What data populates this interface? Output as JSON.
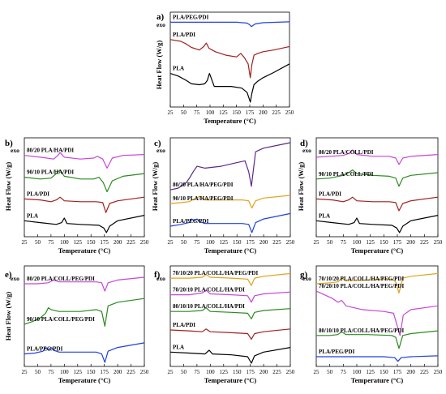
{
  "colors": {
    "black": "#000000",
    "red": "#a0201c",
    "green": "#2b8a1e",
    "magenta": "#c845d8",
    "blue": "#1f3fe0",
    "orange": "#e0a31a",
    "purple": "#5b2a86"
  },
  "chart_data": [
    {
      "type": "line",
      "panel_label": "a)",
      "exo_label": "exo",
      "xlabel": "Temperature (°C)",
      "ylabel": "Heat Flow (W/g)",
      "xlim": [
        25,
        250
      ],
      "xticks": [
        25,
        50,
        75,
        100,
        125,
        150,
        175,
        200,
        225,
        250
      ],
      "series": [
        {
          "name": "PLA/PEG/PDI",
          "color": "#1f3fe0",
          "x": [
            25,
            60,
            100,
            150,
            170,
            175,
            178,
            185,
            200,
            250
          ],
          "y": [
            0.94,
            0.94,
            0.94,
            0.94,
            0.93,
            0.91,
            0.89,
            0.92,
            0.935,
            0.945
          ]
        },
        {
          "name": "PLA/PDI",
          "color": "#a0201c",
          "x": [
            25,
            45,
            55,
            65,
            80,
            88,
            93,
            98,
            110,
            130,
            150,
            158,
            165,
            172,
            176,
            179,
            183,
            190,
            200,
            220,
            250
          ],
          "y": [
            0.74,
            0.72,
            0.69,
            0.65,
            0.62,
            0.66,
            0.7,
            0.64,
            0.6,
            0.56,
            0.54,
            0.58,
            0.53,
            0.46,
            0.3,
            0.45,
            0.56,
            0.58,
            0.6,
            0.62,
            0.66
          ]
        },
        {
          "name": "PLA",
          "color": "#000000",
          "x": [
            25,
            40,
            55,
            65,
            80,
            90,
            95,
            99,
            102,
            108,
            120,
            140,
            160,
            170,
            176,
            179,
            183,
            190,
            200,
            220,
            250
          ],
          "y": [
            0.35,
            0.32,
            0.27,
            0.23,
            0.22,
            0.23,
            0.27,
            0.35,
            0.3,
            0.2,
            0.2,
            0.2,
            0.18,
            0.13,
            0.02,
            0.12,
            0.22,
            0.26,
            0.3,
            0.36,
            0.46
          ]
        }
      ]
    },
    {
      "type": "line",
      "panel_label": "b)",
      "exo_label": "exo",
      "xlabel": "Temperature (°C)",
      "ylabel": "Heat Flow (W/g)",
      "xlim": [
        25,
        250
      ],
      "xticks": [
        25,
        50,
        75,
        100,
        125,
        150,
        175,
        200,
        225,
        250
      ],
      "series": [
        {
          "name": "80/20 PLA/HA/PDI",
          "color": "#c845d8",
          "x": [
            25,
            55,
            80,
            88,
            92,
            100,
            130,
            155,
            162,
            172,
            180,
            190,
            210,
            250
          ],
          "y": [
            0.86,
            0.84,
            0.82,
            0.86,
            0.89,
            0.84,
            0.82,
            0.83,
            0.85,
            0.82,
            0.72,
            0.83,
            0.86,
            0.87
          ]
        },
        {
          "name": "90/10 PLA/HA/PDI",
          "color": "#2b8a1e",
          "x": [
            25,
            55,
            75,
            85,
            92,
            100,
            130,
            155,
            165,
            173,
            180,
            190,
            210,
            250
          ],
          "y": [
            0.62,
            0.6,
            0.61,
            0.66,
            0.7,
            0.63,
            0.6,
            0.6,
            0.62,
            0.56,
            0.46,
            0.58,
            0.63,
            0.66
          ]
        },
        {
          "name": "PLA/PDI",
          "color": "#a0201c",
          "x": [
            25,
            55,
            75,
            85,
            92,
            100,
            130,
            160,
            172,
            178,
            185,
            200,
            250
          ],
          "y": [
            0.38,
            0.37,
            0.35,
            0.37,
            0.4,
            0.36,
            0.35,
            0.35,
            0.34,
            0.23,
            0.33,
            0.36,
            0.4
          ]
        },
        {
          "name": "PLA",
          "color": "#000000",
          "x": [
            25,
            55,
            85,
            95,
            100,
            105,
            130,
            165,
            174,
            179,
            185,
            200,
            250
          ],
          "y": [
            0.14,
            0.12,
            0.1,
            0.12,
            0.17,
            0.11,
            0.1,
            0.09,
            0.06,
            0.01,
            0.08,
            0.14,
            0.2
          ]
        }
      ]
    },
    {
      "type": "line",
      "panel_label": "c)",
      "exo_label": "exo",
      "xlabel": "Temperature (°C)",
      "ylabel": "Heat Flow (W/g)",
      "xlim": [
        25,
        250
      ],
      "xticks": [
        25,
        50,
        75,
        100,
        125,
        150,
        175,
        200,
        225,
        250
      ],
      "series": [
        {
          "name": "80/20 PLA/HA/PEG/PDI",
          "color": "#5b2a86",
          "x": [
            25,
            40,
            55,
            62,
            68,
            75,
            90,
            120,
            150,
            165,
            172,
            177,
            185,
            200,
            225,
            250
          ],
          "y": [
            0.48,
            0.5,
            0.56,
            0.62,
            0.68,
            0.74,
            0.72,
            0.74,
            0.78,
            0.8,
            0.68,
            0.52,
            0.9,
            0.94,
            0.97,
            1.0
          ]
        },
        {
          "name": "90/10 PLA/HA/PEG/PDI",
          "color": "#e0a31a",
          "x": [
            25,
            45,
            60,
            70,
            80,
            90,
            120,
            160,
            172,
            178,
            185,
            200,
            250
          ],
          "y": [
            0.33,
            0.34,
            0.35,
            0.38,
            0.41,
            0.37,
            0.37,
            0.37,
            0.36,
            0.28,
            0.36,
            0.39,
            0.42
          ]
        },
        {
          "name": "PLA/PEG/PDI",
          "color": "#1f3fe0",
          "x": [
            25,
            45,
            60,
            65,
            70,
            75,
            80,
            90,
            120,
            160,
            172,
            178,
            185,
            200,
            250
          ],
          "y": [
            0.08,
            0.1,
            0.12,
            0.16,
            0.14,
            0.16,
            0.13,
            0.11,
            0.11,
            0.11,
            0.1,
            0.01,
            0.12,
            0.16,
            0.22
          ]
        }
      ]
    },
    {
      "type": "line",
      "panel_label": "d)",
      "exo_label": "exo",
      "xlabel": "Temperature (°C)",
      "ylabel": "Heat Flow (W/g)",
      "xlim": [
        25,
        250
      ],
      "xticks": [
        25,
        50,
        75,
        100,
        125,
        150,
        175,
        200,
        225,
        250
      ],
      "series": [
        {
          "name": "80/20 PLA/COLL/PDI",
          "color": "#c845d8",
          "x": [
            25,
            50,
            75,
            85,
            92,
            100,
            130,
            160,
            172,
            178,
            185,
            200,
            250
          ],
          "y": [
            0.84,
            0.85,
            0.86,
            0.88,
            0.92,
            0.87,
            0.85,
            0.85,
            0.83,
            0.76,
            0.83,
            0.85,
            0.87
          ]
        },
        {
          "name": "90/10 PLA/COLL/PDI",
          "color": "#2b8a1e",
          "x": [
            25,
            50,
            75,
            85,
            92,
            100,
            130,
            160,
            172,
            178,
            185,
            200,
            250
          ],
          "y": [
            0.6,
            0.61,
            0.64,
            0.67,
            0.7,
            0.66,
            0.64,
            0.63,
            0.61,
            0.52,
            0.61,
            0.64,
            0.67
          ]
        },
        {
          "name": "PLA/PDI",
          "color": "#a0201c",
          "x": [
            25,
            55,
            75,
            85,
            92,
            100,
            130,
            160,
            172,
            178,
            185,
            200,
            250
          ],
          "y": [
            0.38,
            0.37,
            0.35,
            0.37,
            0.4,
            0.36,
            0.35,
            0.35,
            0.34,
            0.25,
            0.33,
            0.36,
            0.4
          ]
        },
        {
          "name": "PLA",
          "color": "#000000",
          "x": [
            25,
            55,
            85,
            95,
            100,
            105,
            130,
            165,
            174,
            179,
            185,
            200,
            250
          ],
          "y": [
            0.14,
            0.12,
            0.1,
            0.12,
            0.17,
            0.11,
            0.1,
            0.09,
            0.06,
            0.01,
            0.08,
            0.14,
            0.2
          ]
        }
      ]
    },
    {
      "type": "line",
      "panel_label": "e)",
      "exo_label": "exo",
      "xlabel": "Temperature (°C)",
      "ylabel": "Heat Flow (W/g)",
      "xlim": [
        25,
        250
      ],
      "xticks": [
        25,
        50,
        75,
        100,
        125,
        150,
        175,
        200,
        225,
        250
      ],
      "series": [
        {
          "name": "80/20 PLA/COLL/PEG/PDI",
          "color": "#c845d8",
          "x": [
            25,
            50,
            70,
            80,
            90,
            120,
            160,
            170,
            176,
            182,
            200,
            250
          ],
          "y": [
            0.86,
            0.86,
            0.87,
            0.9,
            0.88,
            0.88,
            0.88,
            0.87,
            0.78,
            0.87,
            0.9,
            0.93
          ]
        },
        {
          "name": "90/10 PLA/COLL/PEG/PDI",
          "color": "#2b8a1e",
          "x": [
            25,
            40,
            55,
            65,
            70,
            75,
            90,
            130,
            160,
            170,
            176,
            182,
            200,
            250
          ],
          "y": [
            0.42,
            0.45,
            0.49,
            0.54,
            0.6,
            0.58,
            0.56,
            0.56,
            0.58,
            0.56,
            0.4,
            0.62,
            0.66,
            0.7
          ]
        },
        {
          "name": "PLA/PEG/PDI",
          "color": "#1f3fe0",
          "x": [
            25,
            45,
            60,
            65,
            70,
            75,
            80,
            90,
            120,
            160,
            170,
            176,
            182,
            200,
            250
          ],
          "y": [
            0.1,
            0.11,
            0.13,
            0.17,
            0.14,
            0.17,
            0.14,
            0.12,
            0.12,
            0.12,
            0.1,
            0.01,
            0.13,
            0.17,
            0.22
          ]
        }
      ]
    },
    {
      "type": "line",
      "panel_label": "f)",
      "exo_label": "exo",
      "xlabel": "Temperature (°C)",
      "ylabel": "",
      "xlim": [
        25,
        250
      ],
      "xticks": [
        25,
        50,
        75,
        100,
        125,
        150,
        175,
        200,
        225,
        250
      ],
      "series": [
        {
          "name": "70/10/20 PLA/COLL/HA/PEG/PDI",
          "color": "#e0a31a",
          "x": [
            25,
            60,
            85,
            92,
            100,
            140,
            170,
            177,
            183,
            200,
            250
          ],
          "y": [
            0.92,
            0.92,
            0.93,
            0.96,
            0.93,
            0.92,
            0.91,
            0.84,
            0.92,
            0.94,
            0.97
          ]
        },
        {
          "name": "70/20/10 PLA/COLL/HA/PDI",
          "color": "#c845d8",
          "x": [
            25,
            60,
            85,
            92,
            100,
            140,
            170,
            177,
            183,
            200,
            250
          ],
          "y": [
            0.74,
            0.74,
            0.76,
            0.79,
            0.75,
            0.74,
            0.73,
            0.66,
            0.73,
            0.75,
            0.77
          ]
        },
        {
          "name": "80/10/10 PLA/COLL/HA/PDI",
          "color": "#2b8a1e",
          "x": [
            25,
            60,
            85,
            92,
            100,
            140,
            170,
            177,
            183,
            200,
            250
          ],
          "y": [
            0.56,
            0.56,
            0.57,
            0.6,
            0.56,
            0.55,
            0.54,
            0.48,
            0.55,
            0.57,
            0.59
          ]
        },
        {
          "name": "PLA/PDI",
          "color": "#a0201c",
          "x": [
            25,
            60,
            85,
            92,
            100,
            140,
            170,
            177,
            183,
            200,
            250
          ],
          "y": [
            0.36,
            0.35,
            0.34,
            0.37,
            0.34,
            0.33,
            0.32,
            0.26,
            0.32,
            0.34,
            0.37
          ]
        },
        {
          "name": "PLA",
          "color": "#000000",
          "x": [
            25,
            60,
            90,
            98,
            104,
            140,
            170,
            177,
            183,
            200,
            250
          ],
          "y": [
            0.12,
            0.11,
            0.1,
            0.14,
            0.1,
            0.09,
            0.07,
            0.0,
            0.08,
            0.12,
            0.17
          ]
        }
      ]
    },
    {
      "type": "line",
      "panel_label": "g)",
      "exo_label": "exo",
      "xlabel": "Temperature (°C)",
      "ylabel": "",
      "xlim": [
        25,
        250
      ],
      "xticks": [
        25,
        50,
        75,
        100,
        125,
        150,
        175,
        200,
        225,
        250
      ],
      "series": [
        {
          "name": "70/10/20 PLA/COLL/HA/PEG/PDI",
          "color": "#e0a31a",
          "x": [
            25,
            50,
            65,
            72,
            80,
            120,
            165,
            172,
            178,
            185,
            200,
            250
          ],
          "y": [
            0.86,
            0.87,
            0.88,
            0.92,
            0.89,
            0.9,
            0.91,
            0.88,
            0.76,
            0.92,
            0.94,
            0.97
          ]
        },
        {
          "name": "70/20/10 PLA/COLL/HA/PEG/PDI",
          "color": "#c845d8",
          "x": [
            25,
            40,
            55,
            65,
            72,
            80,
            110,
            150,
            168,
            175,
            180,
            186,
            200,
            250
          ],
          "y": [
            0.78,
            0.74,
            0.7,
            0.66,
            0.68,
            0.62,
            0.58,
            0.56,
            0.54,
            0.4,
            0.3,
            0.52,
            0.58,
            0.62
          ]
        },
        {
          "name": "80/10/10 PLA/COLL/HA/PEG/PDI",
          "color": "#2b8a1e",
          "x": [
            25,
            50,
            65,
            72,
            80,
            120,
            165,
            172,
            178,
            185,
            200,
            250
          ],
          "y": [
            0.3,
            0.3,
            0.31,
            0.34,
            0.31,
            0.31,
            0.3,
            0.28,
            0.16,
            0.3,
            0.32,
            0.35
          ]
        },
        {
          "name": "PLA/PEG/PDI",
          "color": "#1f3fe0",
          "x": [
            25,
            60,
            100,
            150,
            170,
            176,
            182,
            200,
            250
          ],
          "y": [
            0.07,
            0.07,
            0.07,
            0.07,
            0.06,
            0.02,
            0.06,
            0.07,
            0.08
          ]
        }
      ]
    }
  ]
}
